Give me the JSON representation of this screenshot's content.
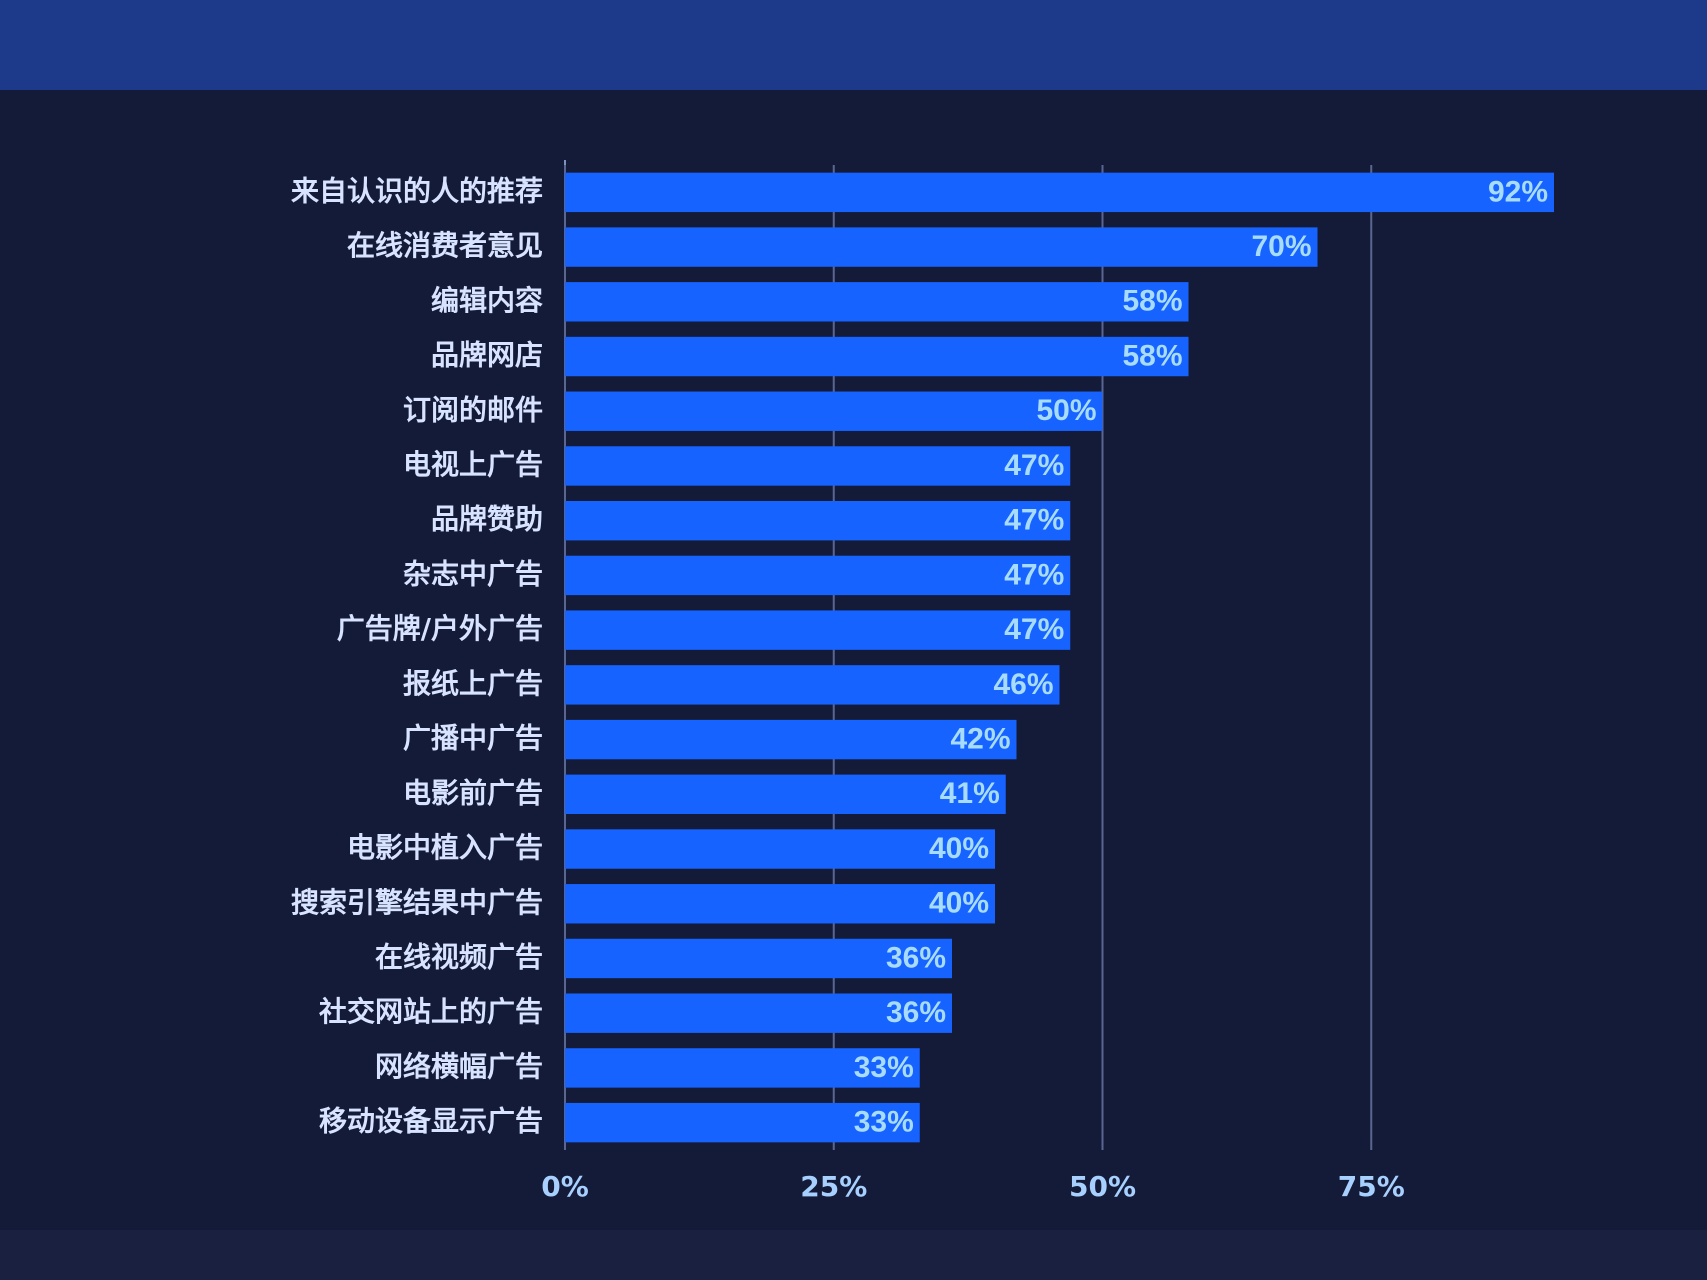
{
  "chart_data": {
    "type": "hbar",
    "categories": [
      "来自认识的人的推荐",
      "在线消费者意见",
      "编辑内容",
      "品牌网店",
      "订阅的邮件",
      "电视上广告",
      "品牌赞助",
      "杂志中广告",
      "广告牌/户外广告",
      "报纸上广告",
      "广播中广告",
      "电影前广告",
      "电影中植入广告",
      "搜索引擎结果中广告",
      "在线视频广告",
      "社交网站上的广告",
      "网络横幅广告",
      "移动设备显示广告"
    ],
    "values": [
      92,
      70,
      58,
      58,
      50,
      47,
      47,
      47,
      47,
      46,
      42,
      41,
      40,
      40,
      36,
      36,
      33,
      33
    ],
    "value_labels": [
      "92%",
      "70%",
      "58%",
      "58%",
      "50%",
      "47%",
      "47%",
      "47%",
      "47%",
      "46%",
      "42%",
      "41%",
      "40%",
      "40%",
      "36%",
      "36%",
      "33%",
      "33%"
    ],
    "color": "#1763ff",
    "xlim": [
      0,
      100
    ],
    "xticks": [
      {
        "value": 0,
        "label": "0%"
      },
      {
        "value": 25,
        "label": "25%"
      },
      {
        "value": 50,
        "label": "50%"
      },
      {
        "value": 75,
        "label": "75%"
      }
    ],
    "grid": true
  }
}
